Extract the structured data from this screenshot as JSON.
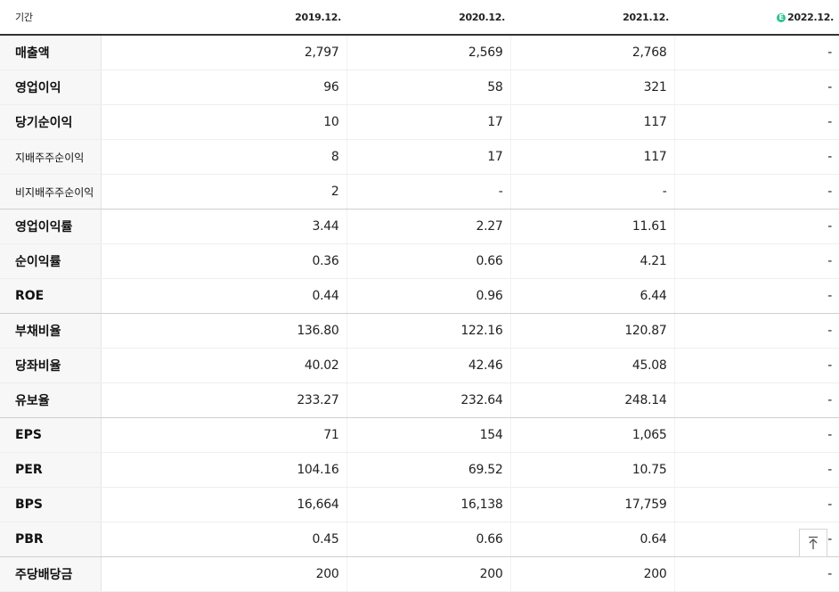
{
  "header": {
    "period_label": "기간",
    "columns": [
      "2019.12.",
      "2020.12.",
      "2021.12.",
      "2022.12."
    ],
    "estimate_icon": "E"
  },
  "rows": [
    {
      "label": "매출액",
      "values": [
        "2,797",
        "2,569",
        "2,768",
        "-"
      ]
    },
    {
      "label": "영업이익",
      "values": [
        "96",
        "58",
        "321",
        "-"
      ]
    },
    {
      "label": "당기순이익",
      "values": [
        "10",
        "17",
        "117",
        "-"
      ]
    },
    {
      "label": "지배주주순이익",
      "values": [
        "8",
        "17",
        "117",
        "-"
      ]
    },
    {
      "label": "비지배주주순이익",
      "values": [
        "2",
        "-",
        "-",
        "-"
      ]
    },
    {
      "label": "영업이익률",
      "values": [
        "3.44",
        "2.27",
        "11.61",
        "-"
      ]
    },
    {
      "label": "순이익률",
      "values": [
        "0.36",
        "0.66",
        "4.21",
        "-"
      ]
    },
    {
      "label": "ROE",
      "values": [
        "0.44",
        "0.96",
        "6.44",
        "-"
      ]
    },
    {
      "label": "부채비율",
      "values": [
        "136.80",
        "122.16",
        "120.87",
        "-"
      ]
    },
    {
      "label": "당좌비율",
      "values": [
        "40.02",
        "42.46",
        "45.08",
        "-"
      ]
    },
    {
      "label": "유보율",
      "values": [
        "233.27",
        "232.64",
        "248.14",
        "-"
      ]
    },
    {
      "label": "EPS",
      "values": [
        "71",
        "154",
        "1,065",
        "-"
      ]
    },
    {
      "label": "PER",
      "values": [
        "104.16",
        "69.52",
        "10.75",
        "-"
      ]
    },
    {
      "label": "BPS",
      "values": [
        "16,664",
        "16,138",
        "17,759",
        "-"
      ]
    },
    {
      "label": "PBR",
      "values": [
        "0.45",
        "0.66",
        "0.64",
        "-"
      ]
    },
    {
      "label": "주당배당금",
      "values": [
        "200",
        "200",
        "200",
        "-"
      ]
    }
  ],
  "scroll_top_icon": "scroll-to-top-icon"
}
